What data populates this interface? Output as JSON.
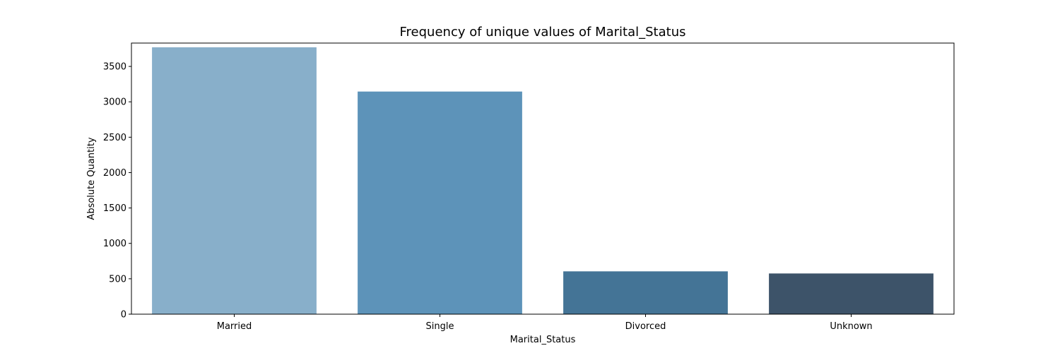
{
  "chart_data": {
    "type": "bar",
    "title": "Frequency of unique values of Marital_Status",
    "xlabel": "Marital_Status",
    "ylabel": "Absolute Quantity",
    "categories": [
      "Married",
      "Single",
      "Divorced",
      "Unknown"
    ],
    "values": [
      3770,
      3145,
      605,
      575
    ],
    "ylim": [
      0,
      3830
    ],
    "yticks": [
      0,
      500,
      1000,
      1500,
      2000,
      2500,
      3000,
      3500
    ],
    "grid": false,
    "colors": [
      "#88afca",
      "#5d93b9",
      "#447496",
      "#3d5369"
    ]
  }
}
